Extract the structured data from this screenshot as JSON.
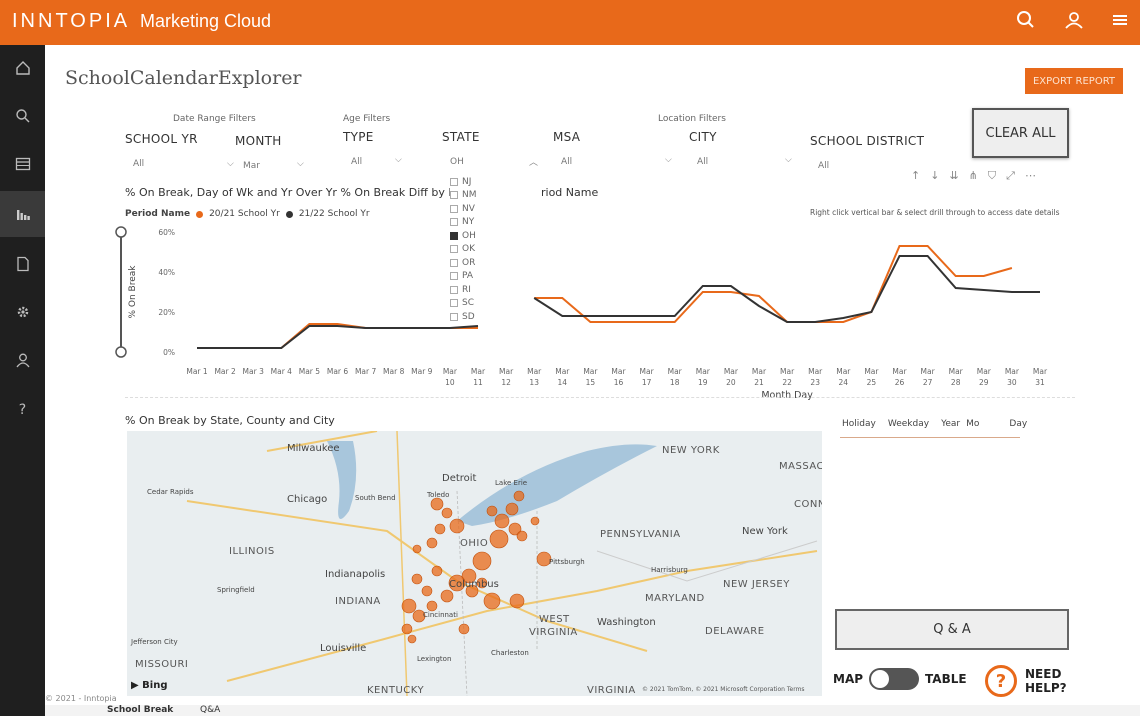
{
  "app": {
    "brand": "INNTOPIA",
    "product": "Marketing Cloud"
  },
  "icons": {
    "search": "search-icon",
    "user": "user-icon",
    "menu": "menu-icon"
  },
  "page": {
    "title": "SchoolCalendarExplorer",
    "export_label": "EXPORT REPORT"
  },
  "sidebar": {
    "items": [
      "home-icon",
      "search-icon",
      "calendar-icon",
      "bar-chart-icon",
      "document-icon",
      "gear-icon",
      "user-icon",
      "help-icon"
    ]
  },
  "filters": {
    "groups": [
      "Date Range Filters",
      "Age Filters",
      "Location Filters"
    ],
    "fields": [
      {
        "label": "SCHOOL YR",
        "value": "All"
      },
      {
        "label": "MONTH",
        "value": "Mar"
      },
      {
        "label": "TYPE",
        "value": "All"
      },
      {
        "label": "STATE",
        "value": "OH"
      },
      {
        "label": "MSA",
        "value": "All"
      },
      {
        "label": "CITY",
        "value": "All"
      },
      {
        "label": "SCHOOL DISTRICT",
        "value": "All"
      }
    ],
    "clear_all": "CLEAR ALL",
    "state_options": [
      "NJ",
      "NM",
      "NV",
      "NY",
      "OH",
      "OK",
      "OR",
      "PA",
      "RI",
      "SC",
      "SD"
    ]
  },
  "chart_header": {
    "title": "% On Break, Day of Wk and Yr Over Yr % On Break Diff by M",
    "title_tail": "riod Name",
    "legend_label": "Period Name",
    "legend": [
      "20/21 School Yr",
      "21/22 School Yr"
    ],
    "note": "Right click vertical bar & select drill through to access date details",
    "slider": {
      "low": 0.0,
      "high": 1.0
    }
  },
  "chart_data": {
    "type": "line",
    "xlabel": "Month Day",
    "ylabel": "% On Break",
    "y_ticks": [
      "60%",
      "40%",
      "20%",
      "0%"
    ],
    "ylim": [
      0,
      60
    ],
    "categories": [
      "Mar 1",
      "Mar 2",
      "Mar 3",
      "Mar 4",
      "Mar 5",
      "Mar 6",
      "Mar 7",
      "Mar 8",
      "Mar 9",
      "Mar 10",
      "Mar 11",
      "Mar 12",
      "Mar 13",
      "Mar 14",
      "Mar 15",
      "Mar 16",
      "Mar 17",
      "Mar 18",
      "Mar 19",
      "Mar 20",
      "Mar 21",
      "Mar 22",
      "Mar 23",
      "Mar 24",
      "Mar 25",
      "Mar 26",
      "Mar 27",
      "Mar 28",
      "Mar 29",
      "Mar 30",
      "Mar 31"
    ],
    "series": [
      {
        "name": "20/21 School Yr",
        "color": "#e8691a",
        "values": [
          2,
          2,
          2,
          2,
          14,
          14,
          12,
          12,
          12,
          12,
          12,
          null,
          27,
          27,
          15,
          15,
          15,
          15,
          30,
          30,
          28,
          15,
          15,
          15,
          20,
          53,
          53,
          38,
          38,
          42,
          null
        ]
      },
      {
        "name": "21/22 School Yr",
        "color": "#333333",
        "values": [
          2,
          2,
          2,
          2,
          13,
          13,
          12,
          12,
          12,
          12,
          13,
          null,
          27,
          18,
          18,
          18,
          18,
          18,
          33,
          33,
          23,
          15,
          15,
          17,
          20,
          48,
          48,
          32,
          31,
          30,
          30
        ]
      }
    ]
  },
  "map_section": {
    "title": "% On Break by State, County and City",
    "labels": [
      {
        "t": "Milwaukee",
        "c": "city"
      },
      {
        "t": "Detroit",
        "c": "city"
      },
      {
        "t": "Chicago",
        "c": "city"
      },
      {
        "t": "NEW YORK",
        "c": "state"
      },
      {
        "t": "MASSAC",
        "c": "state"
      },
      {
        "t": "CONN",
        "c": "state"
      },
      {
        "t": "ILLINOIS",
        "c": "state"
      },
      {
        "t": "OHIO",
        "c": "state"
      },
      {
        "t": "PENNSYLVANIA",
        "c": "state"
      },
      {
        "t": "New York",
        "c": "city"
      },
      {
        "t": "Indianapolis",
        "c": "city"
      },
      {
        "t": "INDIANA",
        "c": "state"
      },
      {
        "t": "Columbus",
        "c": "city"
      },
      {
        "t": "Pittsburgh",
        "c": "city"
      },
      {
        "t": "NEW JERSEY",
        "c": "state"
      },
      {
        "t": "MARYLAND",
        "c": "state"
      },
      {
        "t": "WEST",
        "c": "state"
      },
      {
        "t": "VIRGINIA",
        "c": "state"
      },
      {
        "t": "Washington",
        "c": "city"
      },
      {
        "t": "DELAWARE",
        "c": "state"
      },
      {
        "t": "Louisville",
        "c": "city"
      },
      {
        "t": "MISSOURI",
        "c": "state"
      },
      {
        "t": "KENTUCKY",
        "c": "state"
      },
      {
        "t": "VIRGINIA",
        "c": "state"
      },
      {
        "t": "Cedar Rapids",
        "c": "small"
      },
      {
        "t": "South Bend",
        "c": "small"
      },
      {
        "t": "Springfield",
        "c": "small"
      },
      {
        "t": "Cincinnati",
        "c": "small"
      },
      {
        "t": "Jefferson City",
        "c": "small"
      },
      {
        "t": "Harrisburg",
        "c": "small"
      },
      {
        "t": "Lexington",
        "c": "small"
      },
      {
        "t": "Charleston",
        "c": "small"
      },
      {
        "t": "Toledo",
        "c": "small"
      },
      {
        "t": "Lake Erie",
        "c": "small"
      }
    ],
    "bing": "Bing",
    "attribution": "© 2021 TomTom, © 2021 Microsoft Corporation  Terms"
  },
  "visual_tabs": [
    "Holiday",
    "Weekday",
    "Year",
    "Mo",
    "Day"
  ],
  "qa_label": "Q & A",
  "toggle": {
    "left": "MAP",
    "right": "TABLE"
  },
  "help": {
    "line1": "NEED",
    "line2": "HELP?"
  },
  "footer": {
    "copyright": "© 2021 - Inntopia",
    "tabs": [
      "School Break",
      "Q&A"
    ]
  }
}
